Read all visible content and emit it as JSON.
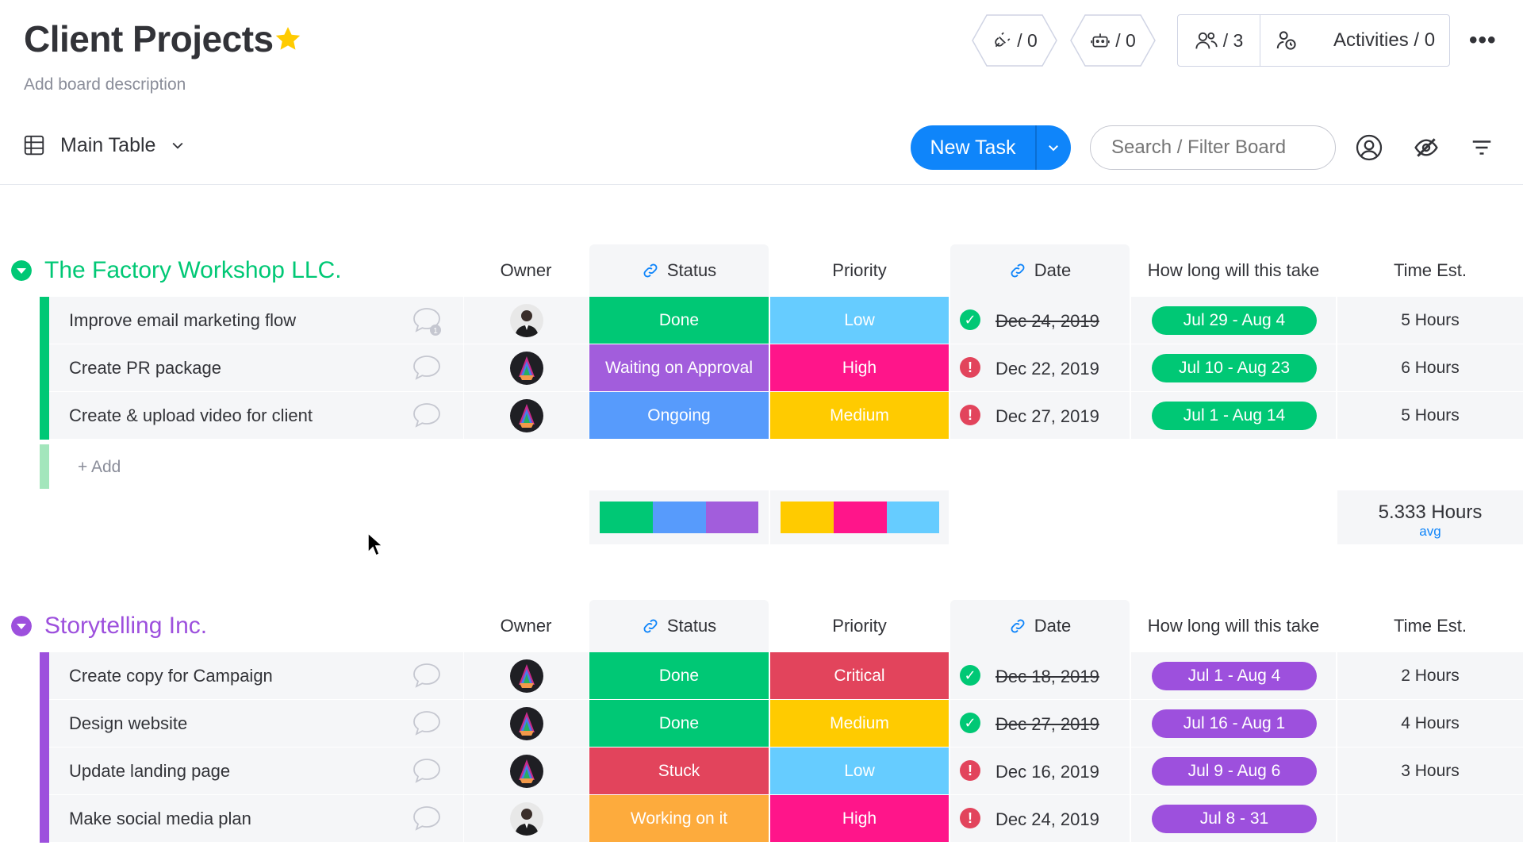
{
  "board": {
    "title": "Client Projects",
    "description": "Add board description"
  },
  "header": {
    "integrations_count": "/ 0",
    "automations_count": "/ 0",
    "members_count": "/ 3",
    "activities_label": "Activities / 0"
  },
  "toolbar": {
    "view_label": "Main Table",
    "new_task_label": "New Task",
    "search_placeholder": "Search / Filter Board"
  },
  "columns": {
    "owner": "Owner",
    "status": "Status",
    "priority": "Priority",
    "date": "Date",
    "timeline": "How long will this take",
    "estimate": "Time Est."
  },
  "colors": {
    "green": "#00c875",
    "purple": "#9d50dd",
    "done": "#00c875",
    "waiting": "#a25ddc",
    "working": "#fdab3d",
    "ongoing": "#579bfc",
    "stuck": "#e2445c",
    "low": "#66ccff",
    "high": "#ff158a",
    "medium": "#ffcb00",
    "critical": "#e2445c",
    "check": "#00c875",
    "alert": "#e2445c"
  },
  "groups": [
    {
      "title": "The Factory Workshop LLC.",
      "color": "#00c875",
      "rows": [
        {
          "name": "Improve email marketing flow",
          "status": "Done",
          "priority": "Low",
          "date": "Dec 24, 2019",
          "date_done": true,
          "timeline": "Jul 29 - Aug 4",
          "estimate": "5 Hours",
          "comment_count": "1",
          "avatar": "person"
        },
        {
          "name": "Create PR package",
          "status": "Waiting on Approval",
          "priority": "High",
          "date": "Dec 22, 2019",
          "date_done": false,
          "timeline": "Jul 10 - Aug 23",
          "estimate": "6 Hours",
          "comment_count": "",
          "avatar": "art"
        },
        {
          "name": "Create & upload video for client",
          "status": "Ongoing",
          "priority": "Medium",
          "date": "Dec 27, 2019",
          "date_done": false,
          "timeline": "Jul 1 - Aug 14",
          "estimate": "5 Hours",
          "comment_count": "",
          "avatar": "art"
        }
      ],
      "add_label": "+ Add",
      "avg_value": "5.333 Hours",
      "avg_label": "avg"
    },
    {
      "title": "Storytelling Inc.",
      "color": "#9d50dd",
      "rows": [
        {
          "name": "Create copy for Campaign",
          "status": "Done",
          "priority": "Critical",
          "date": "Dec 18, 2019",
          "date_done": true,
          "timeline": "Jul 1 - Aug 4",
          "estimate": "2 Hours",
          "avatar": "art"
        },
        {
          "name": "Design website",
          "status": "Done",
          "priority": "Medium",
          "date": "Dec 27, 2019",
          "date_done": true,
          "timeline": "Jul 16 - Aug 1",
          "estimate": "4 Hours",
          "avatar": "art"
        },
        {
          "name": "Update landing page",
          "status": "Stuck",
          "priority": "Low",
          "date": "Dec 16, 2019",
          "date_done": false,
          "timeline": "Jul 9 - Aug 6",
          "estimate": "3 Hours",
          "avatar": "art"
        },
        {
          "name": "Make social media plan",
          "status": "Working on it",
          "priority": "High",
          "date": "Dec 24, 2019",
          "date_done": false,
          "timeline": "Jul 8 - 31",
          "estimate": "",
          "avatar": "person"
        }
      ]
    }
  ]
}
